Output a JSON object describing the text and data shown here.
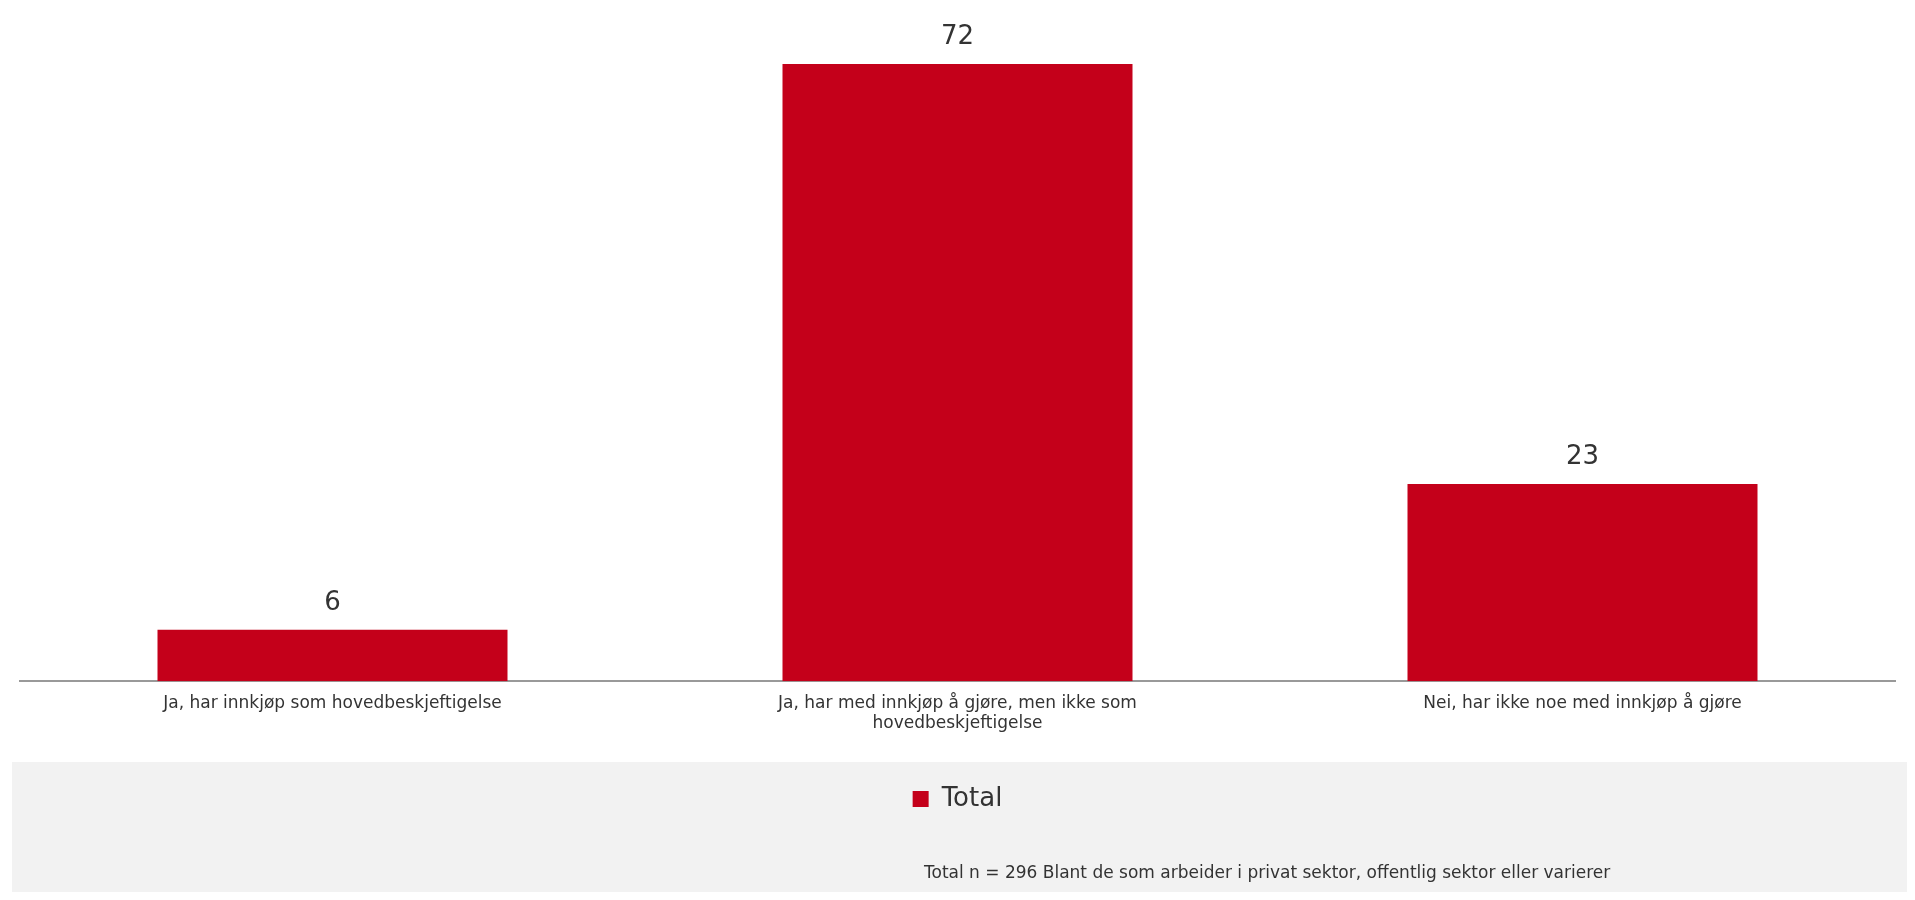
{
  "chart_data": {
    "type": "bar",
    "categories": [
      "Ja, har innkjøp som hovedbeskjeftigelse",
      "Ja, har med innkjøp å gjøre, men ikke som hovedbeskjeftigelse",
      "Nei, har ikke noe med innkjøp å gjøre"
    ],
    "series": [
      {
        "name": "Total",
        "color": "#c4001a",
        "values": [
          6,
          72,
          23
        ]
      }
    ],
    "data_labels": true,
    "grid": false,
    "legend": "bottom",
    "tick_labels": "x",
    "annotations": [
      "Total n = 296 Blant de som arbeider i privat sektor, offentlig sektor eller varierer"
    ]
  }
}
